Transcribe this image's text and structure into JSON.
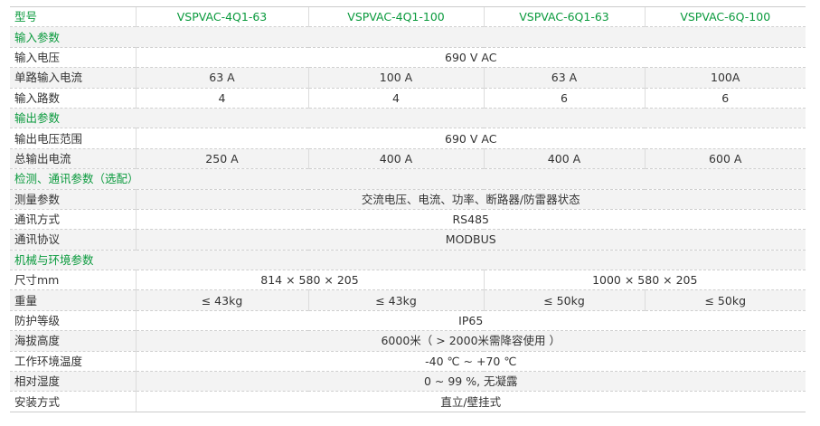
{
  "header": {
    "label": "型号",
    "models": [
      "VSPVAC-4Q1-63",
      "VSPVAC-4Q1-100",
      "VSPVAC-6Q1-63",
      "VSPVAC-6Q-100"
    ]
  },
  "sections": {
    "input": "输入参数",
    "output": "输出参数",
    "monitoring": "检测、通讯参数（选配）",
    "mechanical": "机械与环境参数"
  },
  "rows": {
    "input_voltage": {
      "label": "输入电压",
      "value": "690 V AC"
    },
    "single_input_current": {
      "label": "单路输入电流",
      "values": [
        "63 A",
        "100 A",
        "63 A",
        "100A"
      ]
    },
    "input_channels": {
      "label": "输入路数",
      "values": [
        "4",
        "4",
        "6",
        "6"
      ]
    },
    "output_voltage_range": {
      "label": "输出电压范围",
      "value": "690 V AC"
    },
    "total_output_current": {
      "label": "总输出电流",
      "values": [
        "250 A",
        "400 A",
        "400 A",
        "600 A"
      ]
    },
    "measurement": {
      "label": "测量参数",
      "value": "交流电压、电流、功率、断路器/防雷器状态"
    },
    "comm_method": {
      "label": "通讯方式",
      "value": "RS485"
    },
    "comm_protocol": {
      "label": "通讯协议",
      "value": "MODBUS"
    },
    "dimensions": {
      "label": "尺寸mm",
      "values": [
        "814 × 580 × 205",
        "1000 × 580 × 205"
      ]
    },
    "weight": {
      "label": "重量",
      "values": [
        "≤ 43kg",
        "≤ 43kg",
        "≤ 50kg",
        "≤ 50kg"
      ]
    },
    "protection": {
      "label": "防护等级",
      "value": "IP65"
    },
    "altitude": {
      "label": "海拔高度",
      "value": "6000米（ > 2000米需降容使用 ）"
    },
    "operating_temp": {
      "label": "工作环境温度",
      "value": "-40 ℃ ~ +70 ℃"
    },
    "humidity": {
      "label": "相对湿度",
      "value": "0 ~ 99 %, 无凝露"
    },
    "installation": {
      "label": "安装方式",
      "value": "直立/壁挂式"
    }
  },
  "colors": {
    "accent": "#0a9a3d",
    "band": "#f3f3f3",
    "text": "#333333"
  }
}
